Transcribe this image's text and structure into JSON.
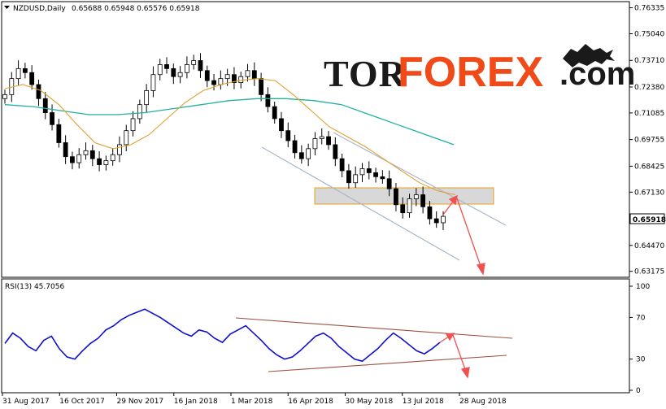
{
  "header": {
    "symbol_label": "NZDUSD,Daily",
    "ohlc": "0.65688 0.65948 0.65576 0.65918"
  },
  "logo": {
    "part1": "TOR",
    "part2": "FOREX",
    "part3": ".com"
  },
  "rsi": {
    "label": "RSI(13) 45.7056"
  },
  "current_price": "0.65918",
  "colors": {
    "bull_candle": "#000000",
    "bear_candle": "#000000",
    "ma_fast": "#e0a030",
    "ma_slow": "#20b0a0",
    "rsi_line": "#1010d0",
    "zone_fill": "#d8d8d8",
    "zone_border": "#e8a020",
    "arrow": "#f05050",
    "channel": "#a8b8c8",
    "rsi_trend": "#a05040"
  },
  "chart_data": [
    {
      "type": "candlestick",
      "title": "NZDUSD,Daily",
      "x_ticks": [
        "31 Aug 2017",
        "16 Oct 2017",
        "29 Nov 2017",
        "16 Jan 2018",
        "1 Mar 2018",
        "16 Apr 2018",
        "30 May 2018",
        "13 Jul 2018",
        "28 Aug 2018"
      ],
      "y_ticks": [
        "0.76335",
        "0.75040",
        "0.73710",
        "0.72380",
        "0.71085",
        "0.69755",
        "0.68425",
        "0.67130",
        "0.65918",
        "0.64470",
        "0.63175"
      ],
      "ylim": [
        0.63,
        0.764
      ],
      "close_series_approx": [
        0.72,
        0.728,
        0.733,
        0.731,
        0.725,
        0.718,
        0.711,
        0.705,
        0.696,
        0.689,
        0.686,
        0.69,
        0.692,
        0.688,
        0.685,
        0.687,
        0.69,
        0.695,
        0.702,
        0.708,
        0.715,
        0.722,
        0.73,
        0.735,
        0.733,
        0.729,
        0.731,
        0.735,
        0.737,
        0.732,
        0.727,
        0.725,
        0.728,
        0.73,
        0.726,
        0.729,
        0.732,
        0.728,
        0.72,
        0.714,
        0.708,
        0.702,
        0.697,
        0.691,
        0.688,
        0.693,
        0.698,
        0.699,
        0.695,
        0.688,
        0.682,
        0.676,
        0.68,
        0.683,
        0.681,
        0.679,
        0.678,
        0.673,
        0.665,
        0.661,
        0.668,
        0.67,
        0.664,
        0.658,
        0.656,
        0.6592
      ],
      "ma_fast_approx": [
        0.723,
        0.725,
        0.722,
        0.715,
        0.705,
        0.696,
        0.693,
        0.695,
        0.7,
        0.708,
        0.716,
        0.722,
        0.725,
        0.727,
        0.728,
        0.727,
        0.72,
        0.712,
        0.704,
        0.699,
        0.694,
        0.688,
        0.682,
        0.676,
        0.672,
        0.67
      ],
      "ma_slow_approx": [
        0.715,
        0.714,
        0.712,
        0.71,
        0.71,
        0.711,
        0.713,
        0.715,
        0.717,
        0.718,
        0.718,
        0.717,
        0.715,
        0.71,
        0.705,
        0.7,
        0.695
      ],
      "annotations": [
        "resistance zone ~0.6680-0.6730",
        "descending channel",
        "projected target below 0.6320"
      ]
    },
    {
      "type": "line",
      "title": "RSI(13) 45.7056",
      "y_ticks": [
        "100",
        "70",
        "30",
        "0"
      ],
      "ylim": [
        0,
        100
      ],
      "values_approx": [
        45,
        55,
        50,
        42,
        38,
        48,
        52,
        40,
        32,
        30,
        38,
        45,
        50,
        58,
        62,
        68,
        72,
        75,
        78,
        74,
        70,
        65,
        60,
        55,
        52,
        58,
        56,
        50,
        46,
        54,
        58,
        62,
        55,
        48,
        40,
        34,
        30,
        32,
        38,
        45,
        52,
        55,
        50,
        42,
        36,
        30,
        28,
        34,
        40,
        48,
        55,
        50,
        44,
        38,
        35,
        40,
        46
      ]
    }
  ]
}
